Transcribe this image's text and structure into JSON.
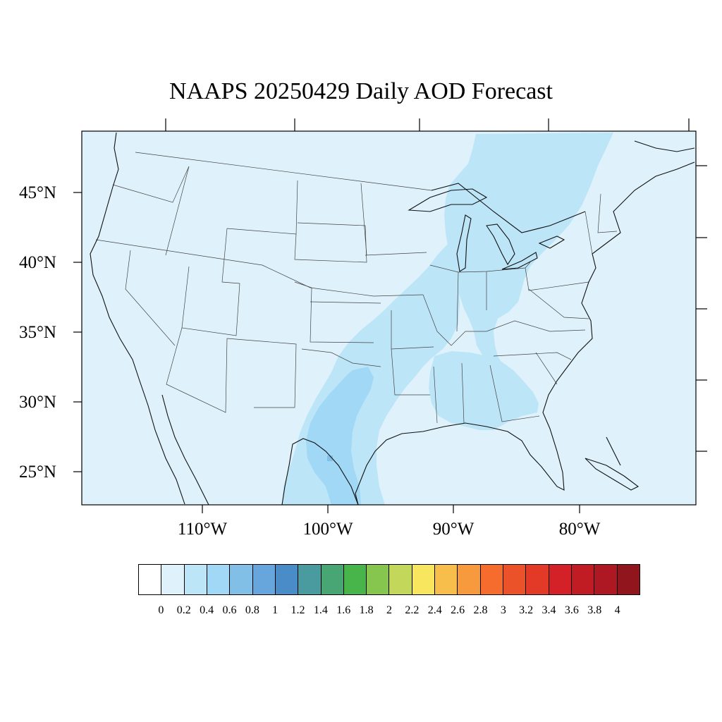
{
  "title": "NAAPS 20250429 Daily AOD Forecast",
  "map": {
    "lat_labels": [
      "45°N",
      "40°N",
      "35°N",
      "30°N",
      "25°N"
    ],
    "lon_labels": [
      "110°W",
      "100°W",
      "90°W",
      "80°W"
    ],
    "background_color": "#dff2fb"
  },
  "colorbar": {
    "colors": [
      "#ffffff",
      "#dff2fb",
      "#bde5f8",
      "#a0d8f5",
      "#82bfe6",
      "#67a6dc",
      "#4a8cc8",
      "#4a9ba0",
      "#47a673",
      "#48b54a",
      "#86c54e",
      "#c3d85a",
      "#f7e65e",
      "#f8be4b",
      "#f79a3e",
      "#f56c2d",
      "#ec5229",
      "#e23a27",
      "#d42127",
      "#c11b24",
      "#ae1822",
      "#91151d"
    ],
    "labels": [
      "0",
      "0.2",
      "0.4",
      "0.6",
      "0.8",
      "1",
      "1.2",
      "1.4",
      "1.6",
      "1.8",
      "2",
      "2.2",
      "2.4",
      "2.6",
      "2.8",
      "3",
      "3.2",
      "3.4",
      "3.6",
      "3.8",
      "4"
    ]
  }
}
